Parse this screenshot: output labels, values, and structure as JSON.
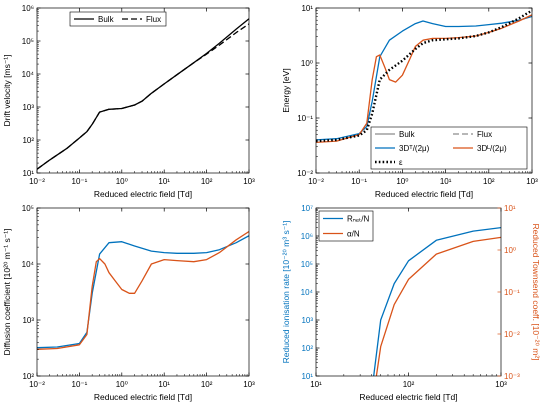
{
  "colors": {
    "blue": "#0072BD",
    "orange": "#D95319",
    "black": "#000000",
    "gray": "#8c8c8c"
  },
  "chart_data": [
    {
      "type": "line",
      "xscale": "log",
      "yscale": "log",
      "xlim": [
        0.01,
        1000
      ],
      "ylim": [
        10,
        1000000
      ],
      "xlabel": "Reduced electric field [Td]",
      "ylabel": "Drift velocity [ms⁻¹]",
      "x_ticks": [
        "10⁻²",
        "10⁻¹",
        "10⁰",
        "10¹",
        "10²",
        "10³"
      ],
      "y_ticks": [
        "10¹",
        "10²",
        "10³",
        "10⁴",
        "10⁵",
        "10⁶"
      ],
      "legend_position": "top",
      "series": [
        {
          "name": "Bulk",
          "color": "black",
          "dash": "solid",
          "x": [
            0.01,
            0.02,
            0.05,
            0.1,
            0.15,
            0.2,
            0.3,
            0.5,
            1,
            2,
            3,
            5,
            10,
            20,
            50,
            100,
            200,
            500,
            1000
          ],
          "y": [
            13,
            25,
            55,
            115,
            180,
            300,
            700,
            850,
            900,
            1150,
            1500,
            2600,
            5000,
            9500,
            22000,
            42000,
            85000,
            230000,
            470000
          ]
        },
        {
          "name": "Flux",
          "color": "black",
          "dash": "dashed",
          "x": [
            0.01,
            0.02,
            0.05,
            0.1,
            0.15,
            0.2,
            0.3,
            0.5,
            1,
            2,
            3,
            5,
            10,
            20,
            50,
            100,
            200,
            500,
            1000
          ],
          "y": [
            13,
            25,
            55,
            115,
            180,
            300,
            700,
            850,
            900,
            1150,
            1500,
            2600,
            5000,
            9500,
            22000,
            40000,
            75000,
            180000,
            330000
          ]
        }
      ]
    },
    {
      "type": "line",
      "xscale": "log",
      "yscale": "log",
      "xlim": [
        0.01,
        1000
      ],
      "ylim": [
        0.01,
        10
      ],
      "xlabel": "Reduced electric field [Td]",
      "ylabel": "Energy [eV]",
      "x_ticks": [
        "10⁻²",
        "10⁻¹",
        "10⁰",
        "10¹",
        "10²",
        "10³"
      ],
      "y_ticks": [
        "10⁻²",
        "10⁻¹",
        "10⁰",
        "10¹"
      ],
      "legend_position": "bottom-right",
      "legend_entries": [
        "Bulk",
        "Flux",
        "3Dᵀ/(2μ)",
        "3Dᴸ/(2μ)",
        "ε"
      ],
      "series": [
        {
          "name": "Bulk",
          "color": "gray",
          "dash": "solid",
          "x": [],
          "y": []
        },
        {
          "name": "Flux",
          "color": "gray",
          "dash": "dashed",
          "x": [],
          "y": []
        },
        {
          "name": "3Dᵀ/(2μ)",
          "color": "blue",
          "dash": "solid",
          "x": [
            0.01,
            0.03,
            0.1,
            0.15,
            0.2,
            0.3,
            0.5,
            1,
            2,
            3,
            5,
            10,
            20,
            50,
            100,
            200,
            500,
            1000
          ],
          "y": [
            0.04,
            0.042,
            0.052,
            0.07,
            0.2,
            1.3,
            2.6,
            3.8,
            5.2,
            5.8,
            5.2,
            4.6,
            4.6,
            4.7,
            5.0,
            5.3,
            6.0,
            7.0
          ]
        },
        {
          "name": "3Dᴸ/(2μ)",
          "color": "orange",
          "dash": "solid",
          "x": [
            0.01,
            0.03,
            0.1,
            0.15,
            0.2,
            0.25,
            0.3,
            0.4,
            0.5,
            0.7,
            1,
            1.5,
            2,
            3,
            5,
            10,
            20,
            50,
            100,
            200,
            500,
            1000
          ],
          "y": [
            0.036,
            0.038,
            0.05,
            0.08,
            0.5,
            1.3,
            1.4,
            0.8,
            0.5,
            0.45,
            0.6,
            1.2,
            2.0,
            2.6,
            2.8,
            2.8,
            2.9,
            3.1,
            3.6,
            4.3,
            5.8,
            7.5
          ]
        },
        {
          "name": "ε",
          "color": "black",
          "dash": "dotted",
          "x": [
            0.01,
            0.03,
            0.1,
            0.15,
            0.2,
            0.3,
            0.5,
            1,
            2,
            3,
            5,
            10,
            20,
            50,
            100,
            200,
            500,
            1000
          ],
          "y": [
            0.038,
            0.04,
            0.048,
            0.06,
            0.12,
            0.5,
            0.75,
            1.1,
            1.8,
            2.3,
            2.6,
            2.7,
            2.8,
            3.1,
            3.6,
            4.5,
            6.5,
            9.0
          ]
        }
      ]
    },
    {
      "type": "line",
      "xscale": "log",
      "yscale": "log",
      "xlim": [
        0.01,
        1000
      ],
      "ylim": [
        100,
        100000
      ],
      "xlabel": "Reduced electric field [Td]",
      "ylabel": "Diffusion coefficient [10²⁰ m⁻¹ s⁻¹]",
      "x_ticks": [
        "10⁻²",
        "10⁻¹",
        "10⁰",
        "10¹",
        "10²",
        "10³"
      ],
      "y_ticks": [
        "10²",
        "10³",
        "10⁴",
        "10⁵"
      ],
      "legend_position": "bottom-right",
      "legend_entries": [
        "Bulk",
        "Flux",
        "Dᵀ",
        "Dᴸ"
      ],
      "series": [
        {
          "name": "Bulk",
          "color": "gray",
          "dash": "solid",
          "x": [],
          "y": []
        },
        {
          "name": "Flux",
          "color": "gray",
          "dash": "dashed",
          "x": [],
          "y": []
        },
        {
          "name": "Dᵀ",
          "color": "blue",
          "dash": "solid",
          "x": [
            0.01,
            0.03,
            0.1,
            0.15,
            0.2,
            0.3,
            0.5,
            1,
            2,
            5,
            10,
            20,
            50,
            100,
            200,
            500,
            1000
          ],
          "y": [
            320,
            330,
            380,
            600,
            3000,
            15000,
            24000,
            25000,
            21000,
            17000,
            16000,
            15500,
            15500,
            16000,
            18000,
            24000,
            32000
          ]
        },
        {
          "name": "Dᴸ",
          "color": "orange",
          "dash": "solid",
          "x": [
            0.01,
            0.03,
            0.1,
            0.15,
            0.2,
            0.25,
            0.3,
            0.4,
            0.5,
            0.7,
            1,
            1.5,
            2,
            3,
            5,
            10,
            20,
            50,
            100,
            200,
            500,
            1000
          ],
          "y": [
            300,
            310,
            360,
            550,
            4000,
            11000,
            12500,
            10000,
            7000,
            5000,
            3500,
            3000,
            3000,
            5000,
            10000,
            12000,
            11500,
            11000,
            12000,
            16000,
            27000,
            38000
          ]
        }
      ]
    },
    {
      "type": "line",
      "xscale": "log",
      "yscale": "log",
      "xlim": [
        10,
        1000
      ],
      "ylim": [
        10,
        10000000
      ],
      "y2lim": [
        0.001,
        10
      ],
      "xlabel": "Reduced electric field [Td]",
      "ylabel": "Reduced ionisation rate [10⁻²⁰ m³ s⁻¹]",
      "y2label": "Reduced Townsend coeff. [10⁻²⁰ m²]",
      "x_ticks": [
        "10¹",
        "10²",
        "10³"
      ],
      "y_ticks": [
        "10¹",
        "10²",
        "10³",
        "10⁴",
        "10⁵",
        "10⁶",
        "10⁷"
      ],
      "y2_ticks": [
        "10⁻³",
        "10⁻²",
        "10⁻¹",
        "10⁰",
        "10¹"
      ],
      "legend_position": "top-left",
      "legend_entries": [
        "Rₙₑₜ/N",
        "α/N"
      ],
      "series": [
        {
          "name": "Rₙₑₜ/N",
          "color": "blue",
          "dash": "solid",
          "axis": "left",
          "x": [
            42,
            50,
            70,
            100,
            200,
            500,
            1000
          ],
          "y": [
            10,
            1000,
            20000,
            130000,
            700000,
            1500000,
            2000000
          ]
        },
        {
          "name": "α/N",
          "color": "orange",
          "dash": "solid",
          "axis": "right",
          "x": [
            45,
            50,
            70,
            100,
            200,
            500,
            1000
          ],
          "y": [
            0.001,
            0.005,
            0.05,
            0.2,
            0.8,
            1.6,
            2.0
          ]
        }
      ]
    }
  ]
}
